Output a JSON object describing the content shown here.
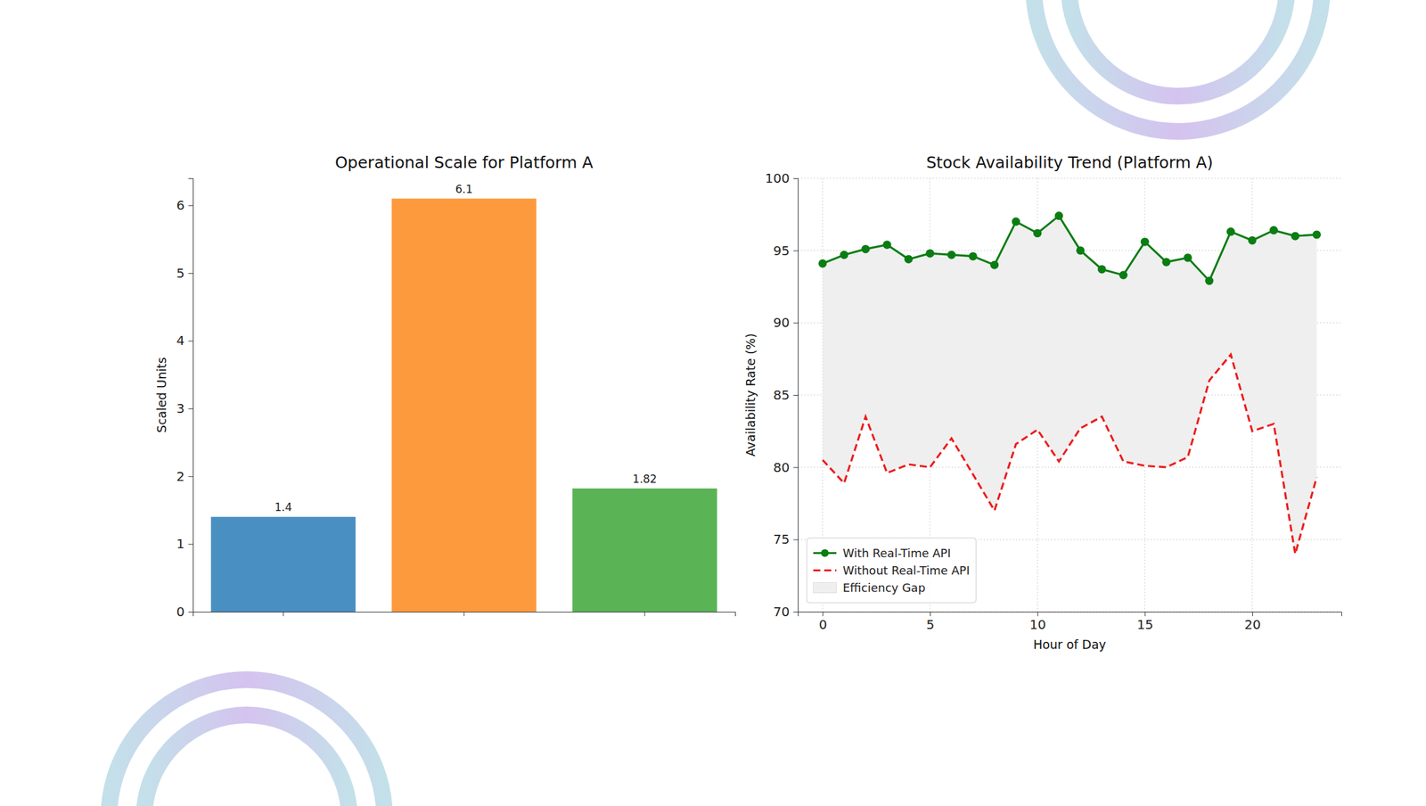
{
  "chart_data": [
    {
      "type": "bar",
      "title": "Operational Scale for Platform A",
      "y_label": "Scaled Units",
      "categories": [
        null,
        null,
        null
      ],
      "values": [
        1.4,
        6.1,
        1.82
      ],
      "colors": [
        "#4a8fc2",
        "#fd9a3e",
        "#5ab354"
      ],
      "ylim": [
        0,
        6.4
      ],
      "yticks": [
        0,
        1,
        2,
        3,
        4,
        5,
        6
      ],
      "data_labels": true,
      "tick_labels": "y"
    },
    {
      "type": "line",
      "title": "Stock Availability Trend (Platform A)",
      "x_label": "Hour of Day",
      "y_label": "Availability Rate (%)",
      "x": [
        0,
        1,
        2,
        3,
        4,
        5,
        6,
        7,
        8,
        9,
        10,
        11,
        12,
        13,
        14,
        15,
        16,
        17,
        18,
        19,
        20,
        21,
        22,
        23
      ],
      "xlim": [
        -1.15,
        24.15
      ],
      "xticks": [
        0,
        5,
        10,
        15,
        20
      ],
      "ylim": [
        70,
        100
      ],
      "yticks": [
        70,
        75,
        80,
        85,
        90,
        95,
        100
      ],
      "grid": true,
      "legend": "lower left",
      "series": [
        {
          "name": "With Real-Time API",
          "color": "#0a7d12",
          "marker": "circle",
          "line_style": "solid",
          "values": [
            94.1,
            94.7,
            95.1,
            95.4,
            94.4,
            94.8,
            94.7,
            94.6,
            94.0,
            97.0,
            96.2,
            97.4,
            95.0,
            93.7,
            93.3,
            95.6,
            94.2,
            94.5,
            92.9,
            96.3,
            95.7,
            96.4,
            96.0,
            96.1
          ]
        },
        {
          "name": "Without Real-Time API",
          "color": "#ee1c1c",
          "line_style": "dashed",
          "values": [
            80.5,
            78.9,
            83.5,
            79.6,
            80.2,
            80.0,
            82.0,
            79.5,
            77.0,
            81.6,
            82.6,
            80.4,
            82.7,
            83.5,
            80.4,
            80.1,
            80.0,
            80.7,
            86.0,
            87.8,
            82.5,
            83.0,
            74.0,
            79.3
          ]
        }
      ],
      "fill_between": {
        "name": "Efficiency Gap",
        "color": "#efefef"
      }
    }
  ]
}
